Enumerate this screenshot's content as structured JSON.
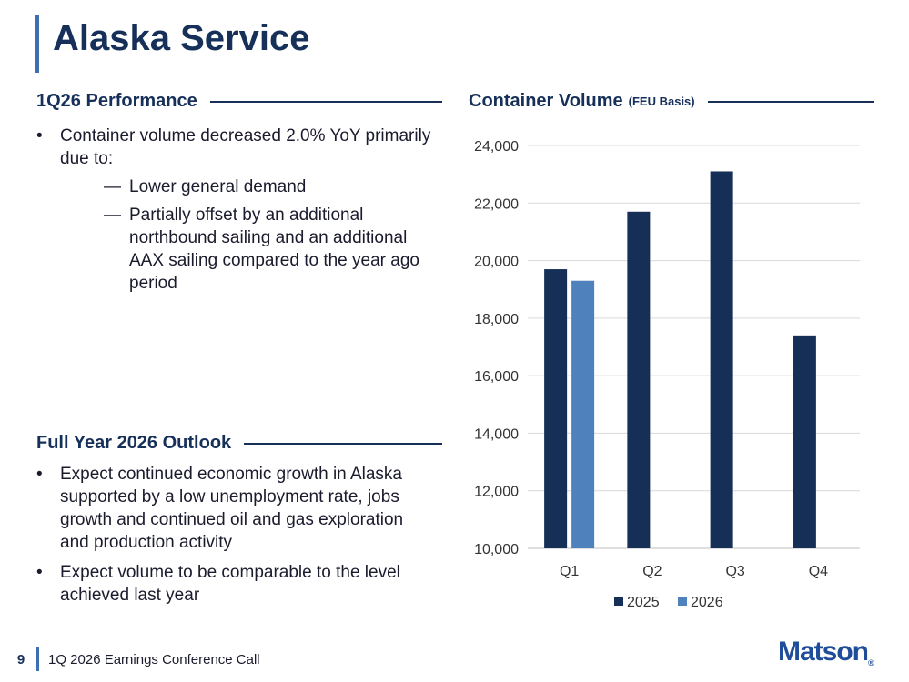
{
  "slide": {
    "title": "Alaska Service"
  },
  "performance": {
    "heading": "1Q26 Performance",
    "bullet_1": "Container volume decreased 2.0% YoY primarily due to:",
    "sub_bullets": [
      "Lower general demand",
      "Partially offset by an additional northbound sailing and an additional AAX sailing compared to the year ago period"
    ]
  },
  "outlook": {
    "heading": "Full Year 2026 Outlook",
    "bullets": [
      "Expect continued economic growth in Alaska supported by a low unemployment rate, jobs growth and continued oil and gas exploration and production activity",
      "Expect volume to be comparable to the level achieved last year"
    ]
  },
  "chart_heading": {
    "label": "Container Volume",
    "sub": "(FEU Basis)"
  },
  "chart_data": {
    "type": "bar",
    "title": "Container Volume",
    "subtitle": "(FEU Basis)",
    "categories": [
      "Q1",
      "Q2",
      "Q3",
      "Q4"
    ],
    "series": [
      {
        "name": "2025",
        "values": [
          19700,
          21700,
          23100,
          17400
        ],
        "color": "#162f56"
      },
      {
        "name": "2026",
        "values": [
          19300,
          null,
          null,
          null
        ],
        "color": "#4f81bd"
      }
    ],
    "ylim": [
      10000,
      24000
    ],
    "yticks": [
      "10,000",
      "12,000",
      "14,000",
      "16,000",
      "18,000",
      "20,000",
      "22,000",
      "24,000"
    ],
    "ytick_values": [
      10000,
      12000,
      14000,
      16000,
      18000,
      20000,
      22000,
      24000
    ],
    "grid": true,
    "legend": "bottom"
  },
  "footer": {
    "page_number": "9",
    "text": "1Q 2026 Earnings Conference Call"
  },
  "logo": {
    "text": "Matson",
    "mark": "®"
  },
  "colors": {
    "navy": "#16305a",
    "accent_blue": "#3d6fb3",
    "series_2025": "#162f56",
    "series_2026": "#4f81bd"
  }
}
